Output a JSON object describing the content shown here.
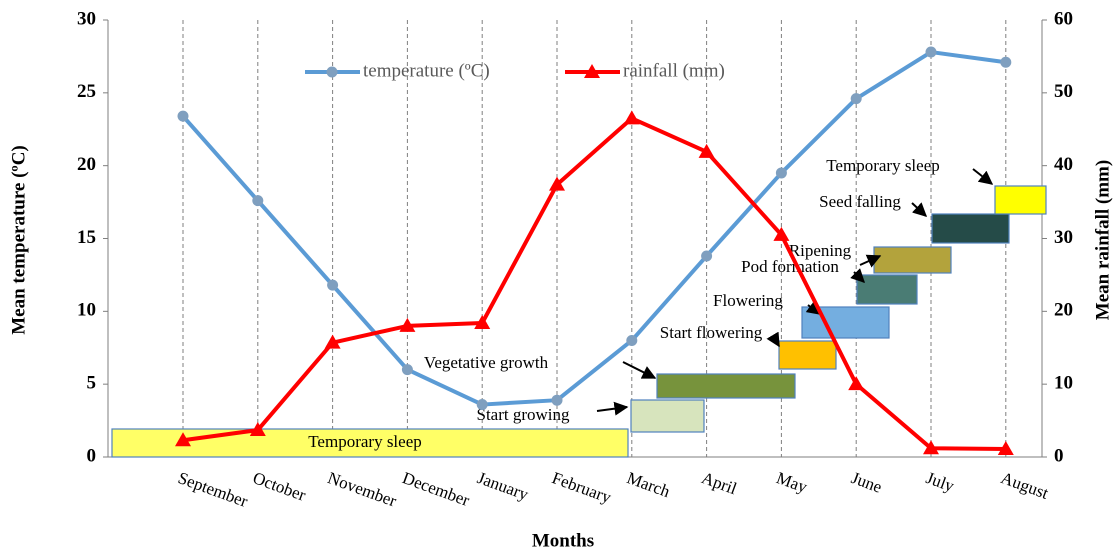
{
  "chart_data": {
    "type": "line",
    "x_label": "Months",
    "y_label": "Mean temperature (ºC)",
    "y2_label": "Mean rainfall (mm)",
    "categories": [
      "September",
      "October",
      "November",
      "December",
      "January",
      "February",
      "March",
      "April",
      "May",
      "June",
      "July",
      "August"
    ],
    "series": [
      {
        "name": "temperature (ºC)",
        "color": "#5b9bd5",
        "marker": "circle",
        "values": [
          23.4,
          17.6,
          11.8,
          6.0,
          3.6,
          3.9,
          8.0,
          13.8,
          19.5,
          24.6,
          27.8,
          27.1
        ]
      },
      {
        "name": "rainfall (mm)",
        "color": "#ff0000",
        "marker": "triangle",
        "axis": "y2",
        "values": [
          2.3,
          3.7,
          15.7,
          18.0,
          18.4,
          37.4,
          46.5,
          41.9,
          30.5,
          10.0,
          1.2,
          1.1
        ]
      }
    ],
    "ylim": [
      0,
      30
    ],
    "yticks": [
      0,
      5,
      10,
      15,
      20,
      25,
      30
    ],
    "y2lim": [
      0,
      60
    ],
    "y2ticks": [
      0,
      10,
      20,
      30,
      40,
      50,
      60
    ],
    "grid": "x-dashed",
    "legend": "top",
    "annotations": [
      {
        "text": "Temporary sleep",
        "color": "#ffff66"
      },
      {
        "text": "Start growing",
        "color": "#d7e4bd"
      },
      {
        "text": "Vegetative growth",
        "color": "#77933c"
      },
      {
        "text": "Start flowering",
        "color": "#ffc000"
      },
      {
        "text": "Flowering",
        "color": "#74aee0"
      },
      {
        "text": "Pod formation",
        "color": "#4a7c74"
      },
      {
        "text": "Ripening",
        "color": "#b3a33c"
      },
      {
        "text": "Seed falling",
        "color": "#254b48"
      },
      {
        "text": "Temporary sleep",
        "color": "#ffff00"
      }
    ]
  }
}
